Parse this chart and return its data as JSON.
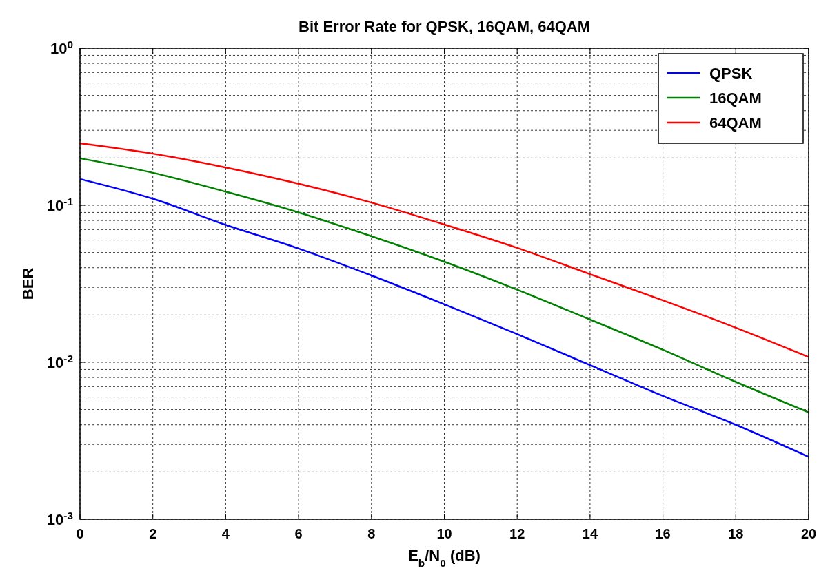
{
  "chart_data": {
    "type": "line",
    "title": "Bit Error Rate for QPSK, 16QAM, 64QAM",
    "xlabel": "E$_{b}$/N$_{0}$ (dB)",
    "ylabel": "BER",
    "x": [
      0,
      2,
      4,
      6,
      8,
      10,
      12,
      14,
      16,
      18,
      20
    ],
    "series": [
      {
        "name": "QPSK",
        "color": "#0000ff",
        "values": [
          0.147,
          0.11,
          0.075,
          0.053,
          0.0357,
          0.0234,
          0.0151,
          0.0096,
          0.0061,
          0.004,
          0.0025
        ]
      },
      {
        "name": "16QAM",
        "color": "#008000",
        "values": [
          0.199,
          0.161,
          0.122,
          0.09,
          0.0635,
          0.0437,
          0.029,
          0.0187,
          0.012,
          0.0075,
          0.0048
        ]
      },
      {
        "name": "64QAM",
        "color": "#ff0000",
        "values": [
          0.248,
          0.213,
          0.174,
          0.137,
          0.104,
          0.0754,
          0.0535,
          0.0364,
          0.0248,
          0.0166,
          0.0108
        ]
      }
    ],
    "xlim": [
      0,
      20
    ],
    "xticks": [
      0,
      2,
      4,
      6,
      8,
      10,
      12,
      14,
      16,
      18,
      20
    ],
    "ylim": [
      0.001,
      1
    ],
    "yticks": [
      {
        "value": 0.001,
        "label": "10$^{-3}$"
      },
      {
        "value": 0.01,
        "label": "10$^{-2}$"
      },
      {
        "value": 0.1,
        "label": "10$^{-1}$"
      },
      {
        "value": 1,
        "label": "10$^{0}$"
      }
    ],
    "log": "y",
    "grid": true,
    "legend": "top right",
    "line_style": "solid",
    "marker": "none"
  }
}
